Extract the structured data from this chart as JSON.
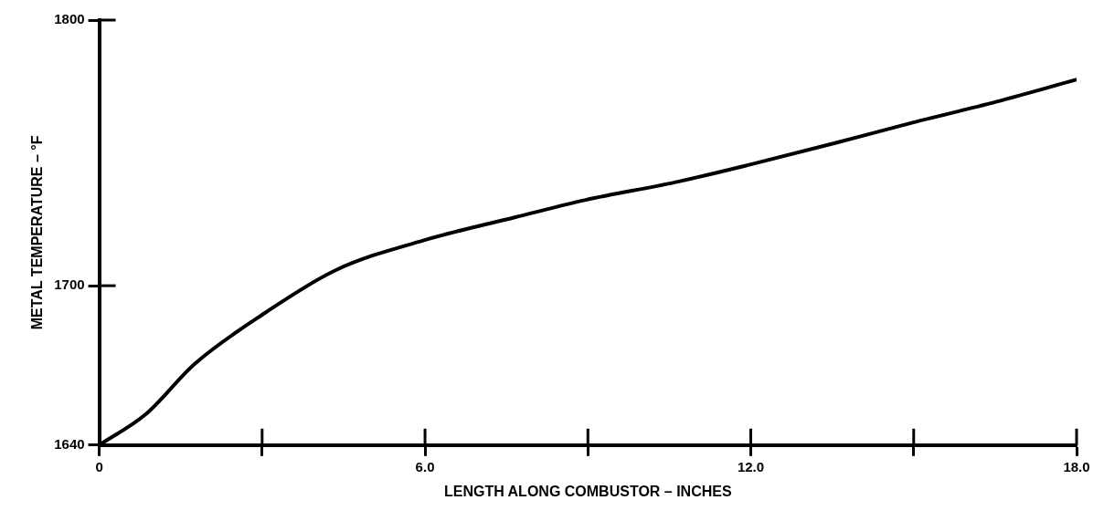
{
  "chart_data": {
    "type": "line",
    "xlabel": "LENGTH ALONG COMBUSTOR – INCHES",
    "ylabel": "METAL TEMPERATURE – °F",
    "x": [
      0,
      0.85,
      1.76,
      3.07,
      4.36,
      6.05,
      7.65,
      8.96,
      10.6,
      11.97,
      13.57,
      14.98,
      16.53,
      18
    ],
    "series": [
      {
        "color": "#000000",
        "values": [
          1640,
          1651.5,
          1670.6,
          1690,
          1705.9,
          1717.5,
          1725.7,
          1732.3,
          1738.9,
          1745.5,
          1753.8,
          1761.4,
          1769.3,
          1777.6
        ]
      }
    ],
    "xlim": [
      0,
      18
    ],
    "ylim": [
      1640,
      1800
    ],
    "xticks": [
      0,
      {
        "value": 3,
        "label": null
      },
      {
        "value": 6,
        "label": "6.0"
      },
      {
        "value": 9,
        "label": null
      },
      {
        "value": 12,
        "label": "12.0"
      },
      {
        "value": 15,
        "label": null
      },
      {
        "value": 18,
        "label": "18.0"
      }
    ],
    "yticks": [
      1640,
      1700,
      1800
    ],
    "grid": false,
    "legend": false,
    "marker": "none",
    "line_style": "solid"
  }
}
